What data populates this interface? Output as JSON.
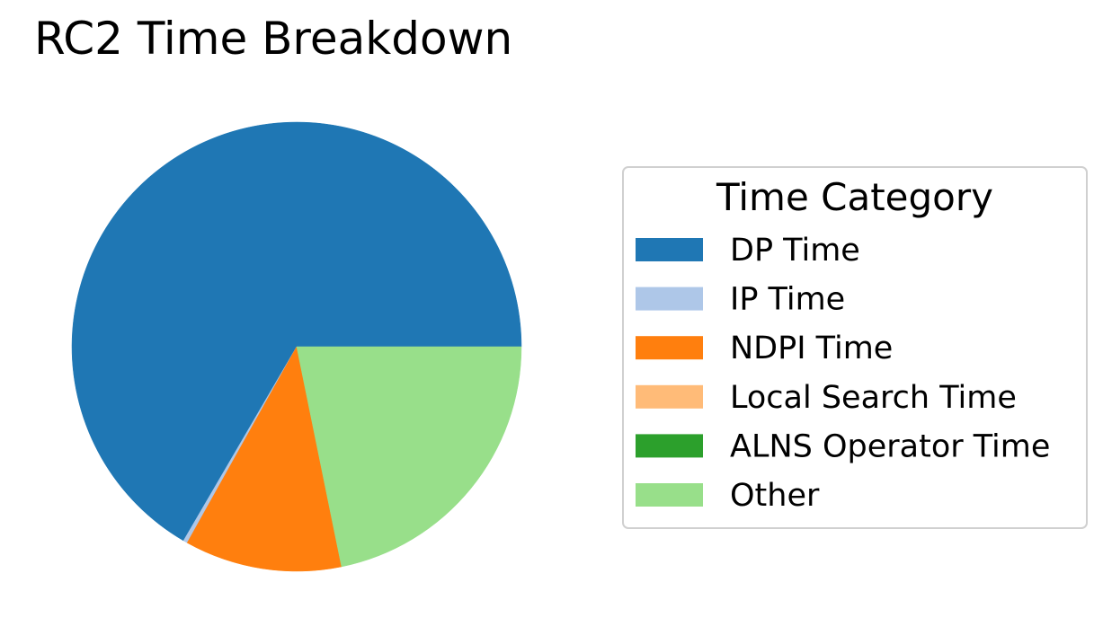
{
  "chart_data": {
    "type": "pie",
    "title": "RC2 Time Breakdown",
    "legend": {
      "title": "Time Category",
      "placement": "right"
    },
    "start_angle_deg": 0,
    "direction": "counterclockwise",
    "slices": [
      {
        "label": "DP Time",
        "value": 66.6,
        "color": "#1f77b4"
      },
      {
        "label": "IP Time",
        "value": 0.3,
        "color": "#aec7e8"
      },
      {
        "label": "NDPI Time",
        "value": 11.3,
        "color": "#ff7f0e"
      },
      {
        "label": "Local Search Time",
        "value": 0.0,
        "color": "#ffbb78"
      },
      {
        "label": "ALNS Operator Time",
        "value": 0.0,
        "color": "#2ca02c"
      },
      {
        "label": "Other",
        "value": 21.8,
        "color": "#98df8a"
      }
    ]
  }
}
